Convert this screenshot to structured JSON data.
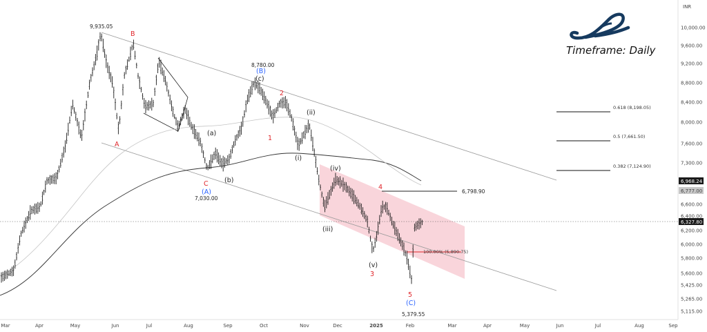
{
  "chart_data": {
    "type": "candlestick",
    "timeframe": "Timeframe: Daily",
    "currency": "INR",
    "y_axis": {
      "ticks": [
        "10,000.00",
        "9,600.00",
        "9,200.00",
        "8,800.00",
        "8,400.00",
        "8,000.00",
        "7,600.00",
        "7,300.00",
        "7,000.00",
        "6,600.00",
        "6,400.00",
        "6,200.00",
        "6,000.00",
        "5,800.00",
        "5,600.00",
        "5,425.00",
        "5,265.00",
        "5,115.00"
      ],
      "markers": [
        {
          "value": "6,968.24",
          "color": "#ffffff",
          "bg": "#1a1a1a"
        },
        {
          "value": "6,777.00",
          "color": "#222222",
          "bg": "#c8c8c8"
        },
        {
          "value": "6,327.80",
          "color": "#ffffff",
          "bg": "#1a1a1a"
        }
      ]
    },
    "x_axis": {
      "ticks": [
        "Mar",
        "Apr",
        "May",
        "Jun",
        "Jul",
        "Aug",
        "Sep",
        "Oct",
        "Nov",
        "Dec",
        "2025",
        "Feb",
        "Mar",
        "Apr",
        "May",
        "Jun",
        "Jul",
        "Aug",
        "Sep"
      ]
    },
    "price_labels": [
      {
        "text": "9,935.05"
      },
      {
        "text": "8,780.00"
      },
      {
        "text": "7,030.00"
      },
      {
        "text": "5,379.55"
      },
      {
        "text": "6,798.90"
      }
    ],
    "wave_labels": [
      {
        "text": "B",
        "color": "#e0252a"
      },
      {
        "text": "A",
        "color": "#e0252a"
      },
      {
        "text": "C",
        "color": "#e0252a"
      },
      {
        "text": "(A)",
        "color": "#2962ff"
      },
      {
        "text": "(B)",
        "color": "#2962ff"
      },
      {
        "text": "(C)",
        "color": "#2962ff"
      },
      {
        "text": "(a)",
        "color": "#222222"
      },
      {
        "text": "(b)",
        "color": "#222222"
      },
      {
        "text": "(c)",
        "color": "#222222"
      },
      {
        "text": "1",
        "color": "#e0252a"
      },
      {
        "text": "2",
        "color": "#e0252a"
      },
      {
        "text": "3",
        "color": "#e0252a"
      },
      {
        "text": "4",
        "color": "#e0252a"
      },
      {
        "text": "5",
        "color": "#e0252a"
      },
      {
        "text": "(i)",
        "color": "#222222"
      },
      {
        "text": "(ii)",
        "color": "#222222"
      },
      {
        "text": "(iii)",
        "color": "#222222"
      },
      {
        "text": "(iv)",
        "color": "#222222"
      },
      {
        "text": "(v)",
        "color": "#222222"
      }
    ],
    "fib_levels": [
      {
        "text": "0.618 (8,198.05)",
        "ratio": 0.618,
        "value": 8198.05
      },
      {
        "text": "0.5 (7,661.50)",
        "ratio": 0.5,
        "value": 7661.5
      },
      {
        "text": "0.382 (7,124.90)",
        "ratio": 0.382,
        "value": 7124.9
      }
    ],
    "extension_label": {
      "text": "100.00% (5,890.75)",
      "color": "#e0252a"
    },
    "colors": {
      "candle": "#1a1a1a",
      "channel_fill": "#f7c7cf",
      "sma_dark": "#333333",
      "sma_light": "#bdbdbd",
      "trend": "#9a9a9a"
    }
  }
}
